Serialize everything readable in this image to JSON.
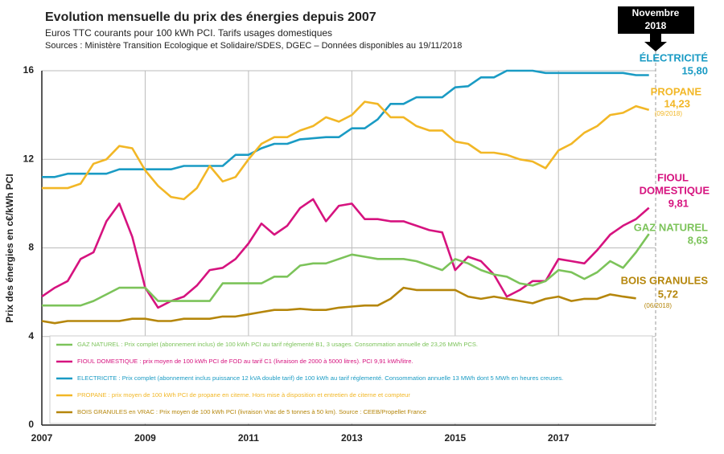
{
  "chart_data": {
    "type": "line",
    "title": "Evolution mensuelle du prix des énergies depuis 2007",
    "subtitle": "Euros TTC courants pour 100 kWh PCI. Tarifs usages domestiques",
    "source": "Sources : Ministère Transition Ecologique et Solidaire/SDES, DGEC – Données disponibles au 19/11/2018",
    "y_label": "Prix des énergies en c€/kWh PCI",
    "marker_label": [
      "Novembre",
      "2018"
    ],
    "xlim": [
      2007,
      2018.88
    ],
    "xticks": [
      2007,
      2009,
      2011,
      2013,
      2015,
      2017
    ],
    "ylim": [
      0,
      16
    ],
    "yticks": [
      0,
      4,
      8,
      12,
      16
    ],
    "grid": true,
    "x": [
      2007,
      2007.25,
      2007.5,
      2007.75,
      2008,
      2008.25,
      2008.5,
      2008.75,
      2009,
      2009.25,
      2009.5,
      2009.75,
      2010,
      2010.25,
      2010.5,
      2010.75,
      2011,
      2011.25,
      2011.5,
      2011.75,
      2012,
      2012.25,
      2012.5,
      2012.75,
      2013,
      2013.25,
      2013.5,
      2013.75,
      2014,
      2014.25,
      2014.5,
      2014.75,
      2015,
      2015.25,
      2015.5,
      2015.75,
      2016,
      2016.25,
      2016.5,
      2016.75,
      2017,
      2017.25,
      2017.5,
      2017.75,
      2018,
      2018.25,
      2018.5,
      2018.75
    ],
    "series": [
      {
        "name": "GAZ NATUREL : Prix complet (abonnement inclus) de 100 kWh PCI au tarif réglementé B1, 3 usages. Consommation annuelle de 23,26 MWh PCS.",
        "color": "#7cc35a",
        "values": [
          5.4,
          5.4,
          5.4,
          5.4,
          5.6,
          5.9,
          6.2,
          6.2,
          6.2,
          5.6,
          5.6,
          5.6,
          5.6,
          5.6,
          6.4,
          6.4,
          6.4,
          6.4,
          6.7,
          6.7,
          7.2,
          7.3,
          7.3,
          7.5,
          7.7,
          7.6,
          7.5,
          7.5,
          7.5,
          7.4,
          7.2,
          7.0,
          7.5,
          7.3,
          7.0,
          6.8,
          6.7,
          6.4,
          6.3,
          6.5,
          7.0,
          6.9,
          6.6,
          6.9,
          7.4,
          7.1,
          7.8,
          8.63
        ]
      },
      {
        "name": "FIOUL DOMESTIQUE : prix moyen de 100 kWh PCI de FOD au tarif C1 (livraison de 2000 à 5000 litres). PCI 9,91 kWh/litre.",
        "color": "#d6137f",
        "values": [
          5.8,
          6.2,
          6.5,
          7.5,
          7.8,
          9.2,
          10.0,
          8.5,
          6.2,
          5.3,
          5.6,
          5.8,
          6.3,
          7.0,
          7.1,
          7.5,
          8.2,
          9.1,
          8.6,
          9.0,
          9.8,
          10.2,
          9.2,
          9.9,
          10.0,
          9.3,
          9.3,
          9.2,
          9.2,
          9.0,
          8.8,
          8.7,
          7.0,
          7.6,
          7.4,
          6.8,
          5.8,
          6.1,
          6.5,
          6.5,
          7.5,
          7.4,
          7.3,
          7.9,
          8.6,
          9.0,
          9.3,
          9.81
        ]
      },
      {
        "name": "ELECTRICITE : Prix complet (abonnement inclus puissance 12 kVA double tarif) de 100 kWh au tarif réglementé. Consommation annuelle 13 MWh dont 5 MWh en heures creuses.",
        "color": "#1a9bc4",
        "values": [
          11.2,
          11.2,
          11.35,
          11.35,
          11.35,
          11.35,
          11.55,
          11.55,
          11.55,
          11.55,
          11.55,
          11.7,
          11.7,
          11.7,
          11.7,
          12.2,
          12.2,
          12.5,
          12.7,
          12.7,
          12.9,
          12.95,
          13.0,
          13.0,
          13.4,
          13.4,
          13.8,
          14.5,
          14.5,
          14.8,
          14.8,
          14.8,
          15.25,
          15.3,
          15.7,
          15.7,
          16.0,
          16.0,
          16.0,
          15.9,
          15.9,
          15.9,
          15.9,
          15.9,
          15.9,
          15.9,
          15.8,
          15.8
        ]
      },
      {
        "name": "PROPANE : prix moyen de 100 kWh PCI de propane en citerne. Hors mise à disposition et entretien de citerne et compteur",
        "color": "#f2b726",
        "values": [
          10.7,
          10.7,
          10.7,
          10.9,
          11.8,
          12.0,
          12.6,
          12.5,
          11.5,
          10.8,
          10.3,
          10.2,
          10.7,
          11.7,
          11.0,
          11.2,
          12.0,
          12.7,
          13.0,
          13.0,
          13.3,
          13.5,
          13.9,
          13.7,
          14.0,
          14.6,
          14.5,
          13.9,
          13.9,
          13.5,
          13.3,
          13.3,
          12.8,
          12.7,
          12.3,
          12.3,
          12.2,
          12.0,
          11.9,
          11.6,
          12.4,
          12.7,
          13.2,
          13.5,
          14.0,
          14.1,
          14.4,
          14.23
        ]
      },
      {
        "name": "BOIS GRANULES en VRAC : Prix moyen de 100 kWh PCI (livraison Vrac de 5 tonnes à 50 km). Source : CEEB/Propellet France",
        "color": "#b5860b",
        "values": [
          4.7,
          4.6,
          4.7,
          4.7,
          4.7,
          4.7,
          4.7,
          4.8,
          4.8,
          4.7,
          4.7,
          4.8,
          4.8,
          4.8,
          4.9,
          4.9,
          5.0,
          5.1,
          5.2,
          5.2,
          5.25,
          5.2,
          5.2,
          5.3,
          5.35,
          5.4,
          5.4,
          5.7,
          6.2,
          6.1,
          6.1,
          6.1,
          6.1,
          5.8,
          5.7,
          5.8,
          5.7,
          5.6,
          5.5,
          5.7,
          5.8,
          5.6,
          5.7,
          5.7,
          5.9,
          5.8,
          5.72,
          null
        ]
      }
    ],
    "annotations": [
      {
        "lines": [
          "ÉLECTRICITÉ",
          "15,80"
        ],
        "color": "#1a9bc4"
      },
      {
        "lines": [
          "PROPANE",
          "14,23",
          "(09/2018)"
        ],
        "color": "#f2b726"
      },
      {
        "lines": [
          "FIOUL",
          "DOMESTIQUE",
          "9,81"
        ],
        "color": "#d6137f"
      },
      {
        "lines": [
          "GAZ NATUREL",
          "8,63"
        ],
        "color": "#7cc35a"
      },
      {
        "lines": [
          "BOIS GRANULES",
          "5,72",
          "(06/2018)"
        ],
        "color": "#b5860b"
      }
    ]
  }
}
